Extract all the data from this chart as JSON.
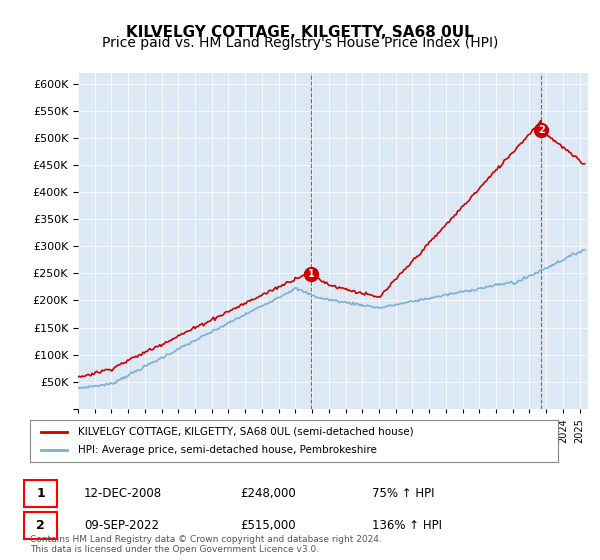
{
  "title": "KILVELGY COTTAGE, KILGETTY, SA68 0UL",
  "subtitle": "Price paid vs. HM Land Registry's House Price Index (HPI)",
  "ylim": [
    0,
    620000
  ],
  "yticks": [
    0,
    50000,
    100000,
    150000,
    200000,
    250000,
    300000,
    350000,
    400000,
    450000,
    500000,
    550000,
    600000
  ],
  "xlim_start": 1995.0,
  "xlim_end": 2025.5,
  "plot_bg_color": "#dce9f5",
  "red_color": "#cc0000",
  "blue_color": "#7ab0d4",
  "legend_label_red": "KILVELGY COTTAGE, KILGETTY, SA68 0UL (semi-detached house)",
  "legend_label_blue": "HPI: Average price, semi-detached house, Pembrokeshire",
  "marker1_date": 2008.95,
  "marker1_value": 248000,
  "marker2_date": 2022.7,
  "marker2_value": 515000,
  "table_row1": [
    "1",
    "12-DEC-2008",
    "£248,000",
    "75% ↑ HPI"
  ],
  "table_row2": [
    "2",
    "09-SEP-2022",
    "£515,000",
    "136% ↑ HPI"
  ],
  "footer": "Contains HM Land Registry data © Crown copyright and database right 2024.\nThis data is licensed under the Open Government Licence v3.0.",
  "title_fontsize": 11,
  "subtitle_fontsize": 10
}
